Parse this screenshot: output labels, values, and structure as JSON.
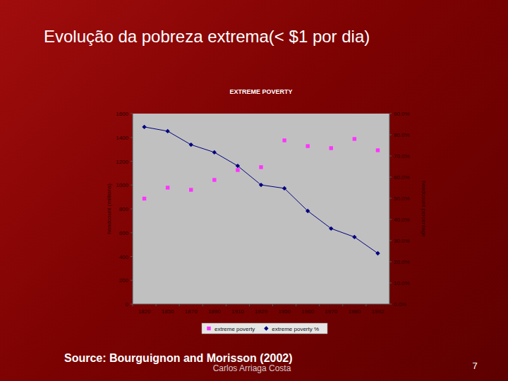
{
  "slide": {
    "title": "Evolução da pobreza extrema(< $1 por dia)",
    "source": "Source: Bourguignon and Morisson (2002)",
    "author": "Carlos Arriaga Costa",
    "page": "7"
  },
  "chart_data": {
    "type": "line",
    "title": "EXTREME POVERTY",
    "categories": [
      "1820",
      "1850",
      "1870",
      "1890",
      "1910",
      "1929",
      "1950",
      "1960",
      "1970",
      "1980",
      "1992"
    ],
    "y_label": "headcount (millions)",
    "y2_label": "headcount percentage",
    "series": [
      {
        "name": "extreme poverty",
        "color": "#ff33ff",
        "marker": "square",
        "line_style": "none",
        "values": [
          886,
          978,
          960,
          1043,
          1126,
          1150,
          1375,
          1327,
          1310,
          1387,
          1292
        ]
      },
      {
        "name": "extreme poverty %",
        "color": "#000080",
        "marker": "diamond",
        "line_style": "solid",
        "axis": "y2",
        "values": [
          83.7,
          81.7,
          75.3,
          71.7,
          65.3,
          56.3,
          54.7,
          44.0,
          35.7,
          31.7,
          24.0
        ]
      }
    ],
    "ylim": [
      0,
      1600
    ],
    "yticks": [
      0,
      200,
      400,
      600,
      800,
      1000,
      1200,
      1400,
      1600
    ],
    "y2lim": [
      0,
      90
    ],
    "y2ticks": [
      {
        "value": 0,
        "label": "0.0%"
      },
      {
        "value": 10,
        "label": "10.0%"
      },
      {
        "value": 20,
        "label": "20.0%"
      },
      {
        "value": 30,
        "label": "30.0%"
      },
      {
        "value": 40,
        "label": "40.0%"
      },
      {
        "value": 50,
        "label": "50.0%"
      },
      {
        "value": 60,
        "label": "60.0%"
      },
      {
        "value": 70,
        "label": "70.0%"
      },
      {
        "value": 80,
        "label": "80.0%"
      },
      {
        "value": 90,
        "label": "90.0%"
      }
    ],
    "grid": false,
    "legend": "bottom"
  }
}
